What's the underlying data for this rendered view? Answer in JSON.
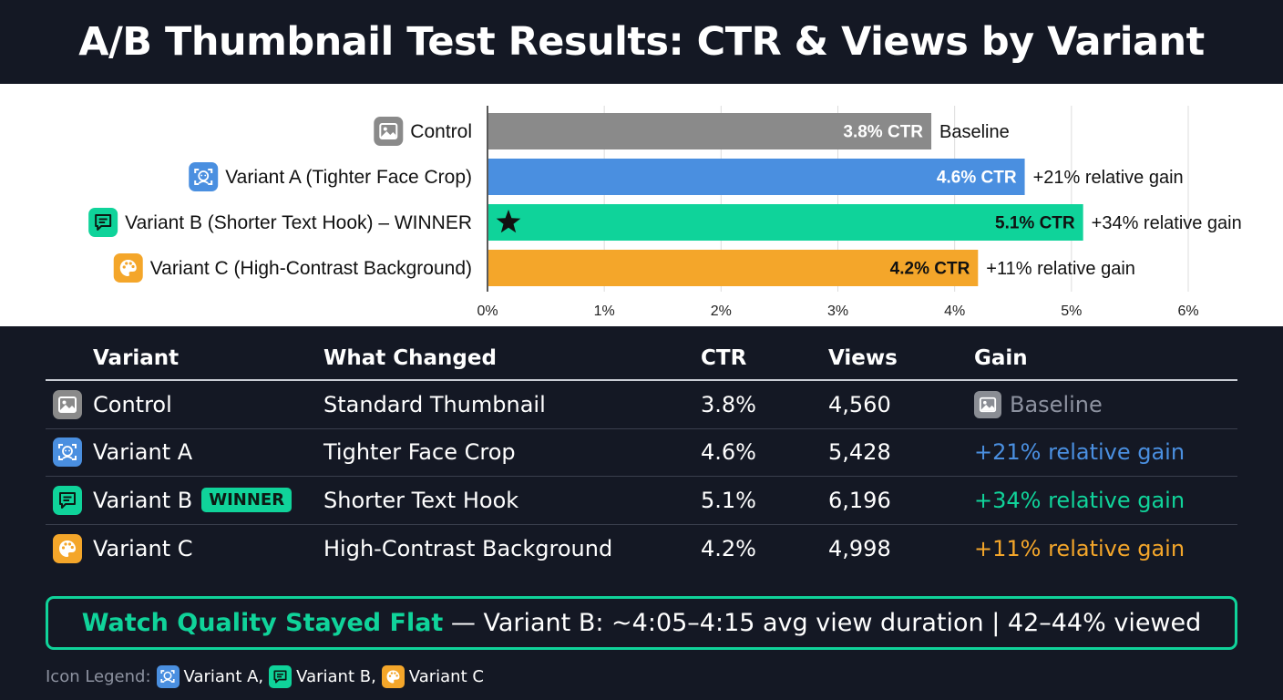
{
  "title": "A/B Thumbnail Test Results: CTR & Views by Variant",
  "colors": {
    "control": "#8a8a8a",
    "a": "#4a8fe0",
    "b": "#0fd39a",
    "c": "#f4a62a"
  },
  "chart_data": {
    "type": "bar",
    "orientation": "horizontal",
    "categories": [
      "Control",
      "Variant A (Tighter Face Crop)",
      "Variant B (Shorter Text Hook) – WINNER",
      "Variant C (High-Contrast Background)"
    ],
    "values": [
      3.8,
      4.6,
      5.1,
      4.2
    ],
    "bar_labels": [
      "3.8% CTR",
      "4.6% CTR",
      "5.1% CTR",
      "4.2% CTR"
    ],
    "annotations": [
      "Baseline",
      "+21% relative gain",
      "+34% relative gain",
      "+11% relative gain"
    ],
    "icons": [
      "image-icon",
      "face-icon",
      "chat-icon",
      "palette-icon"
    ],
    "colors": [
      "#8a8a8a",
      "#4a8fe0",
      "#0fd39a",
      "#f4a62a"
    ],
    "xlim": [
      0,
      6
    ],
    "xticks": [
      "0%",
      "1%",
      "2%",
      "3%",
      "4%",
      "5%",
      "6%"
    ],
    "grid": true,
    "winner_marker": "star-icon"
  },
  "table": {
    "headers": {
      "variant": "Variant",
      "changed": "What Changed",
      "ctr": "CTR",
      "views": "Views",
      "gain": "Gain"
    },
    "rows": [
      {
        "variant": "Control",
        "changed": "Standard Thumbnail",
        "ctr": "3.8%",
        "views": "4,560",
        "gain": "Baseline",
        "icon": "image-icon"
      },
      {
        "variant": "Variant A",
        "changed": "Tighter Face Crop",
        "ctr": "4.6%",
        "views": "5,428",
        "gain": "+21% relative gain",
        "icon": "face-icon"
      },
      {
        "variant": "Variant B",
        "badge": "WINNER",
        "changed": "Shorter Text Hook",
        "ctr": "5.1%",
        "views": "6,196",
        "gain": "+34% relative gain",
        "icon": "chat-icon"
      },
      {
        "variant": "Variant C",
        "changed": "High-Contrast Background",
        "ctr": "4.2%",
        "views": "4,998",
        "gain": "+11% relative gain",
        "icon": "palette-icon"
      }
    ]
  },
  "callout": {
    "highlight": "Watch Quality Stayed Flat",
    "text": " — Variant B: ~4:05–4:15 avg view duration | 42–44% viewed"
  },
  "legend": {
    "label": "Icon Legend:",
    "items": [
      "Variant A,",
      "Variant B,",
      "Variant C"
    ]
  }
}
